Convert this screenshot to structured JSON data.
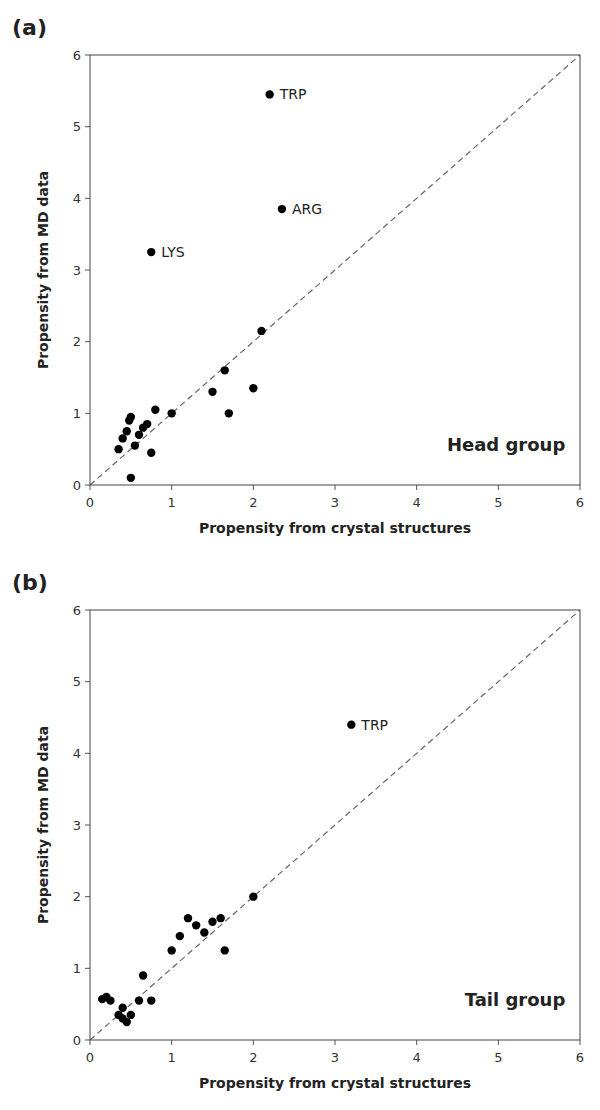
{
  "chart_data": [
    {
      "type": "scatter",
      "title": "(a)",
      "subtitle": "Head group",
      "xlabel": "Propensity from crystal structures",
      "ylabel": "Propensity from MD data",
      "x": [
        0.35,
        0.4,
        0.45,
        0.48,
        0.5,
        0.5,
        0.55,
        0.6,
        0.65,
        0.7,
        0.75,
        0.8,
        1.0,
        1.5,
        1.65,
        1.7,
        2.0,
        2.1,
        0.75,
        2.2,
        2.35
      ],
      "values": [
        0.5,
        0.65,
        0.75,
        0.9,
        0.95,
        0.1,
        0.55,
        0.7,
        0.8,
        0.85,
        0.45,
        1.05,
        1.0,
        1.3,
        1.6,
        1.0,
        1.35,
        2.15,
        3.25,
        5.45,
        3.85
      ],
      "color": "#000000",
      "annotations": [
        {
          "text": "TRP",
          "x": 2.2,
          "y": 5.45
        },
        {
          "text": "ARG",
          "x": 2.35,
          "y": 3.85
        },
        {
          "text": "LYS",
          "x": 0.75,
          "y": 3.25
        }
      ],
      "xlim": [
        0,
        6
      ],
      "ylim": [
        0,
        6
      ],
      "xticks": [
        0,
        1,
        2,
        3,
        4,
        5,
        6
      ],
      "yticks": [
        0,
        1,
        2,
        3,
        4,
        5,
        6
      ],
      "grid": false
    },
    {
      "type": "scatter",
      "title": "(b)",
      "subtitle": "Tail group",
      "xlabel": "Propensity from crystal structures",
      "ylabel": "Propensity from MD data",
      "x": [
        0.15,
        0.2,
        0.25,
        0.35,
        0.4,
        0.4,
        0.45,
        0.5,
        0.6,
        0.65,
        0.75,
        1.0,
        1.1,
        1.2,
        1.3,
        1.4,
        1.5,
        1.6,
        1.65,
        2.0,
        3.2
      ],
      "values": [
        0.57,
        0.6,
        0.55,
        0.35,
        0.3,
        0.45,
        0.25,
        0.35,
        0.55,
        0.9,
        0.55,
        1.25,
        1.45,
        1.7,
        1.6,
        1.5,
        1.65,
        1.7,
        1.25,
        2.0,
        4.4
      ],
      "color": "#000000",
      "annotations": [
        {
          "text": "TRP",
          "x": 3.2,
          "y": 4.4
        }
      ],
      "xlim": [
        0,
        6
      ],
      "ylim": [
        0,
        6
      ],
      "xticks": [
        0,
        1,
        2,
        3,
        4,
        5,
        6
      ],
      "yticks": [
        0,
        1,
        2,
        3,
        4,
        5,
        6
      ],
      "grid": false
    }
  ]
}
